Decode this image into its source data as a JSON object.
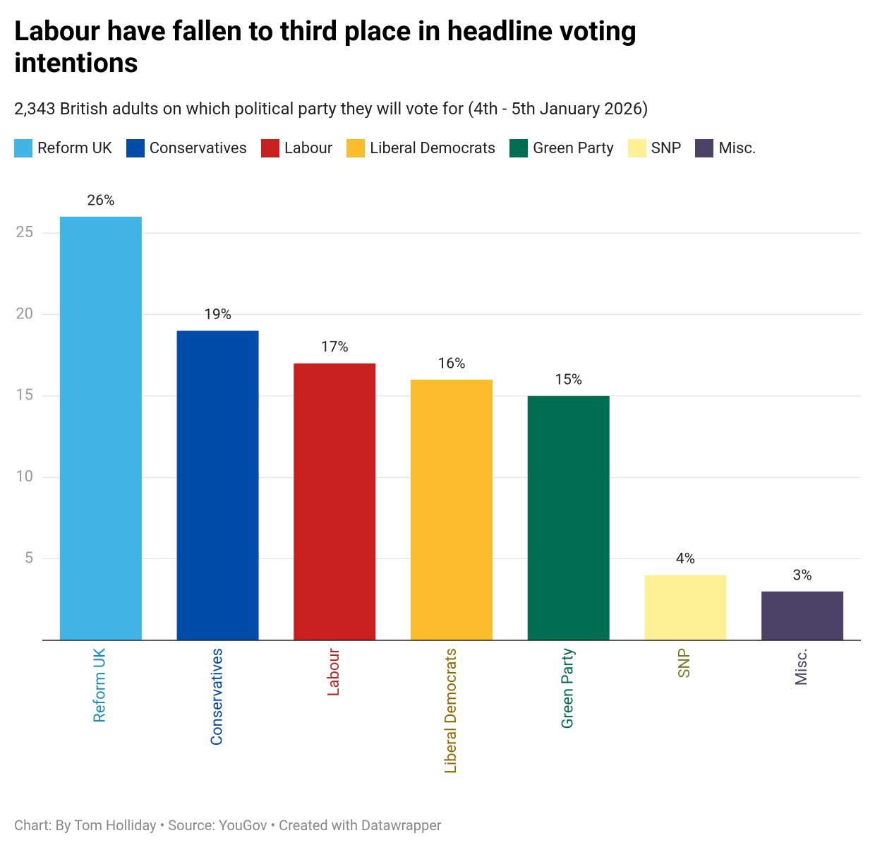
{
  "chart_data": {
    "type": "bar",
    "title": "Labour have fallen to third place in headline voting intentions",
    "subtitle": "2,343 British adults on which political party they will vote for (4th - 5th January 2026)",
    "footer": "Chart: By Tom Holliday • Source: YouGov • Created with Datawrapper",
    "categories": [
      "Reform UK",
      "Conservatives",
      "Labour",
      "Liberal Democrats",
      "Green Party",
      "SNP",
      "Misc."
    ],
    "values": [
      26,
      19,
      17,
      16,
      15,
      4,
      3
    ],
    "value_labels": [
      "26%",
      "19%",
      "17%",
      "16%",
      "15%",
      "4%",
      "3%"
    ],
    "colors": [
      "#41b6e6",
      "#004ca8",
      "#c8201f",
      "#fbbd2c",
      "#006e53",
      "#fef195",
      "#4b4367"
    ],
    "label_colors": [
      "#1b8db8",
      "#004ca8",
      "#c8201f",
      "#8c6b00",
      "#006e53",
      "#7d7a2e",
      "#4b4367"
    ],
    "ylim": [
      0,
      26
    ],
    "yticks": [
      5,
      10,
      15,
      20,
      25
    ],
    "grid": true
  }
}
